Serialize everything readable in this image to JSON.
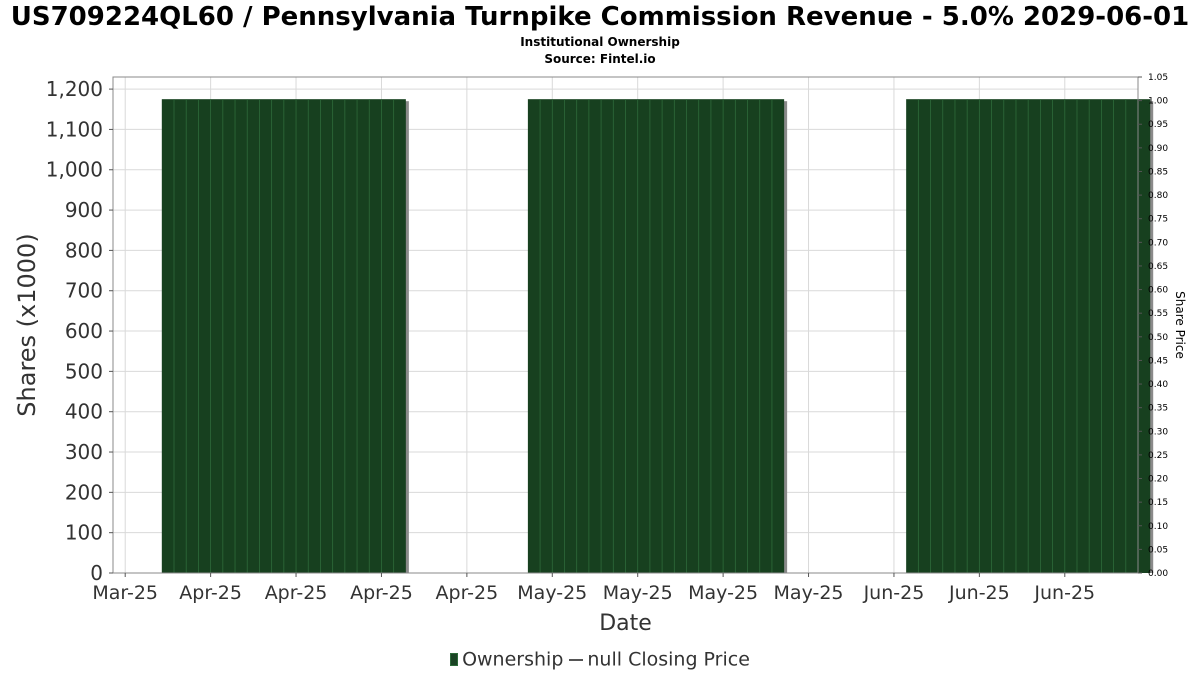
{
  "header": {
    "title": "US709224QL60 / Pennsylvania Turnpike Commission Revenue - 5.0% 2029-06-01",
    "subtitle": "Institutional Ownership",
    "source": "Source: Fintel.io"
  },
  "legend": {
    "ownership": "Ownership",
    "price": "null Closing Price"
  },
  "colors": {
    "bar": "#17401f",
    "bar_line": "#2e6a3a",
    "shadow": "#8a8a8a",
    "grid": "#d9d9d9",
    "axis": "#888888"
  },
  "chart_data": {
    "type": "bar",
    "xlabel": "Date",
    "ylabel": "Shares (x1000)",
    "y2label": "Share Price",
    "ylim": [
      0,
      1230
    ],
    "y2lim": [
      0,
      1.05
    ],
    "yticks": [
      0,
      100,
      200,
      300,
      400,
      500,
      600,
      700,
      800,
      900,
      1000,
      1100,
      1200
    ],
    "yticklabels": [
      "0",
      "100",
      "200",
      "300",
      "400",
      "500",
      "600",
      "700",
      "800",
      "900",
      "1,000",
      "1,100",
      "1,200"
    ],
    "y2ticks": [
      0,
      0.05,
      0.1,
      0.15,
      0.2,
      0.25,
      0.3,
      0.35,
      0.4,
      0.45,
      0.5,
      0.55,
      0.6,
      0.65,
      0.7,
      0.75,
      0.8,
      0.85,
      0.9,
      0.95,
      1.0,
      1.05
    ],
    "y2ticklabels": [
      "0.00",
      "0.05",
      "0.10",
      "0.15",
      "0.20",
      "0.25",
      "0.30",
      "0.35",
      "0.40",
      "0.45",
      "0.50",
      "0.55",
      "0.60",
      "0.65",
      "0.70",
      "0.75",
      "0.80",
      "0.85",
      "0.90",
      "0.95",
      "1.00",
      "1.05"
    ],
    "xlim": [
      "2025-03-29",
      "2025-06-21"
    ],
    "xticks": [
      "2025-03-30",
      "2025-04-06",
      "2025-04-13",
      "2025-04-20",
      "2025-04-27",
      "2025-05-04",
      "2025-05-11",
      "2025-05-18",
      "2025-05-25",
      "2025-06-01",
      "2025-06-08",
      "2025-06-15"
    ],
    "xticklabels": [
      "Mar-25",
      "Apr-25",
      "Apr-25",
      "Apr-25",
      "Apr-25",
      "May-25",
      "May-25",
      "May-25",
      "May-25",
      "Jun-25",
      "Jun-25",
      "Jun-25"
    ],
    "series": [
      {
        "name": "Ownership",
        "segments": [
          {
            "start": "2025-04-02",
            "end": "2025-04-22",
            "value": 1175
          },
          {
            "start": "2025-05-02",
            "end": "2025-05-23",
            "value": 1175
          },
          {
            "start": "2025-06-02",
            "end": "2025-06-22",
            "value": 1175
          }
        ]
      }
    ],
    "grid": true,
    "legend_position": "bottom"
  }
}
